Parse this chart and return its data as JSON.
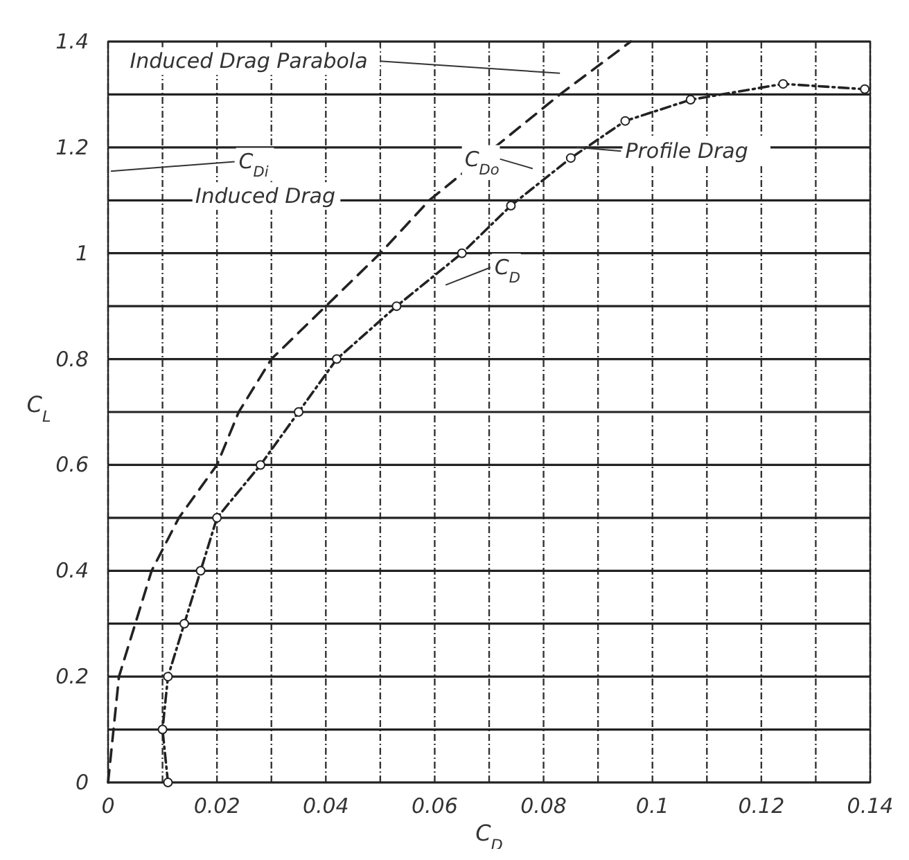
{
  "chart_data": {
    "type": "line",
    "xlabel": "C$_{D}$",
    "ylabel": "C$_{L}$",
    "xlim": [
      0,
      0.14
    ],
    "ylim": [
      0,
      1.4
    ],
    "xticks": [
      0,
      {
        "value": 0.01,
        "label": null
      },
      0.02,
      {
        "value": 0.03,
        "label": null
      },
      0.04,
      {
        "value": 0.05,
        "label": null
      },
      0.06,
      {
        "value": 0.07,
        "label": null
      },
      0.08,
      {
        "value": 0.09,
        "label": null
      },
      0.1,
      {
        "value": 0.11,
        "label": null
      },
      0.12,
      {
        "value": 0.13,
        "label": null
      },
      0.14
    ],
    "yticks": [
      0,
      {
        "value": 0.1,
        "label": null
      },
      0.2,
      {
        "value": 0.3,
        "label": null
      },
      0.4,
      {
        "value": 0.5,
        "label": null
      },
      0.6,
      {
        "value": 0.7,
        "label": null
      },
      0.8,
      {
        "value": 0.9,
        "label": null
      },
      1.0,
      {
        "value": 1.1,
        "label": null
      },
      1.2,
      {
        "value": 1.3,
        "label": null
      },
      1.4
    ],
    "grid": true,
    "series": [
      {
        "color": "#222222",
        "line_style": "dashed",
        "marker": "none",
        "x": [
          0,
          0.002,
          0.005,
          0.008,
          0.013,
          0.02,
          0.024,
          0.03,
          0.04,
          0.05,
          0.059,
          0.071,
          0.083,
          0.096
        ],
        "values": [
          0,
          0.2,
          0.3,
          0.4,
          0.5,
          0.6,
          0.7,
          0.8,
          0.9,
          1.0,
          1.1,
          1.2,
          1.3,
          1.4
        ]
      },
      {
        "color": "#222222",
        "line_style": "dotted",
        "marker": "circle",
        "x": [
          0.011,
          0.01,
          0.011,
          0.014,
          0.017,
          0.02,
          0.028,
          0.035,
          0.042,
          0.053,
          0.065,
          0.074,
          0.085,
          0.095,
          0.107,
          0.124,
          0.139
        ],
        "values": [
          0,
          0.1,
          0.2,
          0.3,
          0.4,
          0.5,
          0.6,
          0.7,
          0.8,
          0.9,
          1.0,
          1.09,
          1.18,
          1.25,
          1.29,
          1.32,
          1.31
        ]
      }
    ],
    "annotations": [
      "Induced Drag Parabola",
      "C$_{Di}$",
      "Induced Drag",
      "C$_{Do}$",
      "Profile Drag",
      "C$_{D}$"
    ]
  }
}
